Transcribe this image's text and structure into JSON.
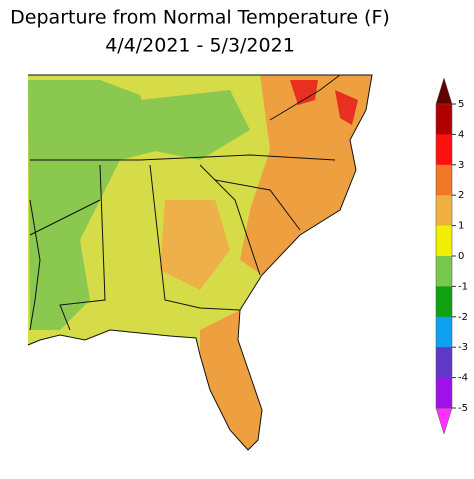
{
  "title": "Departure from Normal Temperature (F)",
  "subtitle": "4/4/2021 - 5/3/2021",
  "colorbar": {
    "ticks": [
      5,
      4,
      3,
      2,
      1,
      0,
      -1,
      -2,
      -3,
      -4,
      -5
    ],
    "colors": [
      "#600000",
      "#b00000",
      "#ff1010",
      "#f07828",
      "#f0b040",
      "#f0f000",
      "#78c850",
      "#10a010",
      "#10a0f0",
      "#6038c8",
      "#a010e8",
      "#ff30ff"
    ]
  }
}
